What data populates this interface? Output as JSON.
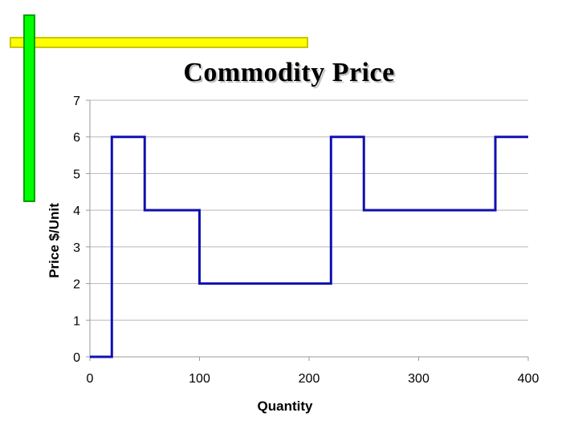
{
  "chart_data": {
    "type": "line",
    "title": "Commodity Price",
    "xlabel": "Quantity",
    "ylabel": "Price $/Unit",
    "xlim": [
      0,
      400
    ],
    "ylim": [
      0,
      7
    ],
    "x_ticks": [
      0,
      100,
      200,
      300,
      400
    ],
    "y_ticks": [
      0,
      1,
      2,
      3,
      4,
      5,
      6,
      7
    ],
    "grid": "horizontal",
    "legend": "none",
    "series": [
      {
        "color": "#1010b0",
        "step": true,
        "points": [
          [
            0,
            0
          ],
          [
            20,
            0
          ],
          [
            20,
            6
          ],
          [
            50,
            6
          ],
          [
            50,
            4
          ],
          [
            100,
            4
          ],
          [
            100,
            2
          ],
          [
            220,
            2
          ],
          [
            220,
            6
          ],
          [
            250,
            6
          ],
          [
            250,
            4
          ],
          [
            370,
            4
          ],
          [
            370,
            6
          ],
          [
            400,
            6
          ]
        ]
      }
    ]
  },
  "decor": {
    "yellow_bar_color": "#ffff00",
    "green_bar_color": "#00ff00"
  }
}
